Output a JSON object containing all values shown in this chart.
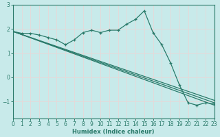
{
  "xlabel": "Humidex (Indice chaleur)",
  "bg_color": "#c8eaea",
  "line_color": "#2a7a6a",
  "grid_color": "#e8d8d8",
  "xlim": [
    0,
    23
  ],
  "ylim": [
    -1.7,
    3.0
  ],
  "yticks": [
    -1,
    0,
    1,
    2
  ],
  "ytop_label": 3,
  "xticks": [
    0,
    1,
    2,
    3,
    4,
    5,
    6,
    7,
    8,
    9,
    10,
    11,
    12,
    13,
    14,
    15,
    16,
    17,
    18,
    19,
    20,
    21,
    22,
    23
  ],
  "line1_x": [
    0,
    1,
    2,
    3,
    4,
    5,
    6,
    7,
    8,
    9,
    10,
    11,
    12,
    13,
    14,
    15,
    16,
    17,
    18,
    19,
    20,
    21,
    22,
    23
  ],
  "line1_y": [
    1.9,
    1.82,
    1.82,
    1.75,
    1.65,
    1.55,
    1.35,
    1.55,
    1.85,
    1.95,
    1.85,
    1.95,
    1.95,
    2.2,
    2.4,
    2.75,
    1.85,
    1.35,
    0.6,
    -0.3,
    -1.05,
    -1.15,
    -1.05,
    -1.1
  ],
  "line2_x": [
    0,
    23
  ],
  "line2_y": [
    1.9,
    -1.15
  ],
  "line3_x": [
    0,
    23
  ],
  "line3_y": [
    1.9,
    -1.05
  ],
  "line4_x": [
    0,
    23
  ],
  "line4_y": [
    1.9,
    -0.95
  ]
}
